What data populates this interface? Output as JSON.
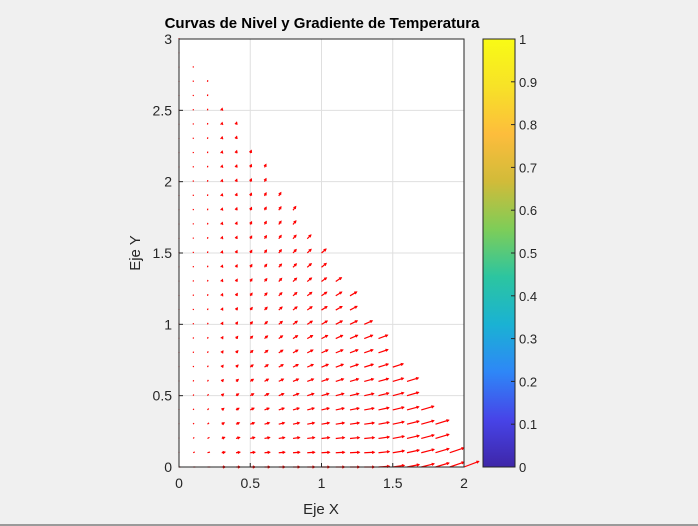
{
  "chart_data": {
    "type": "quiver",
    "title": "Curvas de Nivel y Gradiente de Temperatura",
    "xlabel": "Eje X",
    "ylabel": "Eje Y",
    "xlim": [
      0,
      2
    ],
    "ylim": [
      0,
      3
    ],
    "xticks": [
      "0",
      "0.5",
      "1",
      "1.5",
      "2"
    ],
    "yticks": [
      "0",
      "0.5",
      "1",
      "1.5",
      "2",
      "2.5",
      "3"
    ],
    "grid": true,
    "arrow_color": "#ff0000",
    "vector_grid": {
      "x_step": 0.1,
      "y_step": 0.1,
      "region": "x >= 0, y >= 0, y <= 3 - 1.5*x"
    },
    "colorbar": {
      "ticks": [
        "0",
        "0.1",
        "0.2",
        "0.3",
        "0.4",
        "0.5",
        "0.6",
        "0.7",
        "0.8",
        "0.9",
        "1"
      ],
      "range": [
        0,
        1
      ],
      "colormap": "parula",
      "colors": [
        "#3e26a8",
        "#4744e8",
        "#2e87f7",
        "#1ab2d3",
        "#2cc5a0",
        "#7ecd58",
        "#d1bb39",
        "#fdbd3c",
        "#f7e227",
        "#f9fb15"
      ]
    }
  }
}
